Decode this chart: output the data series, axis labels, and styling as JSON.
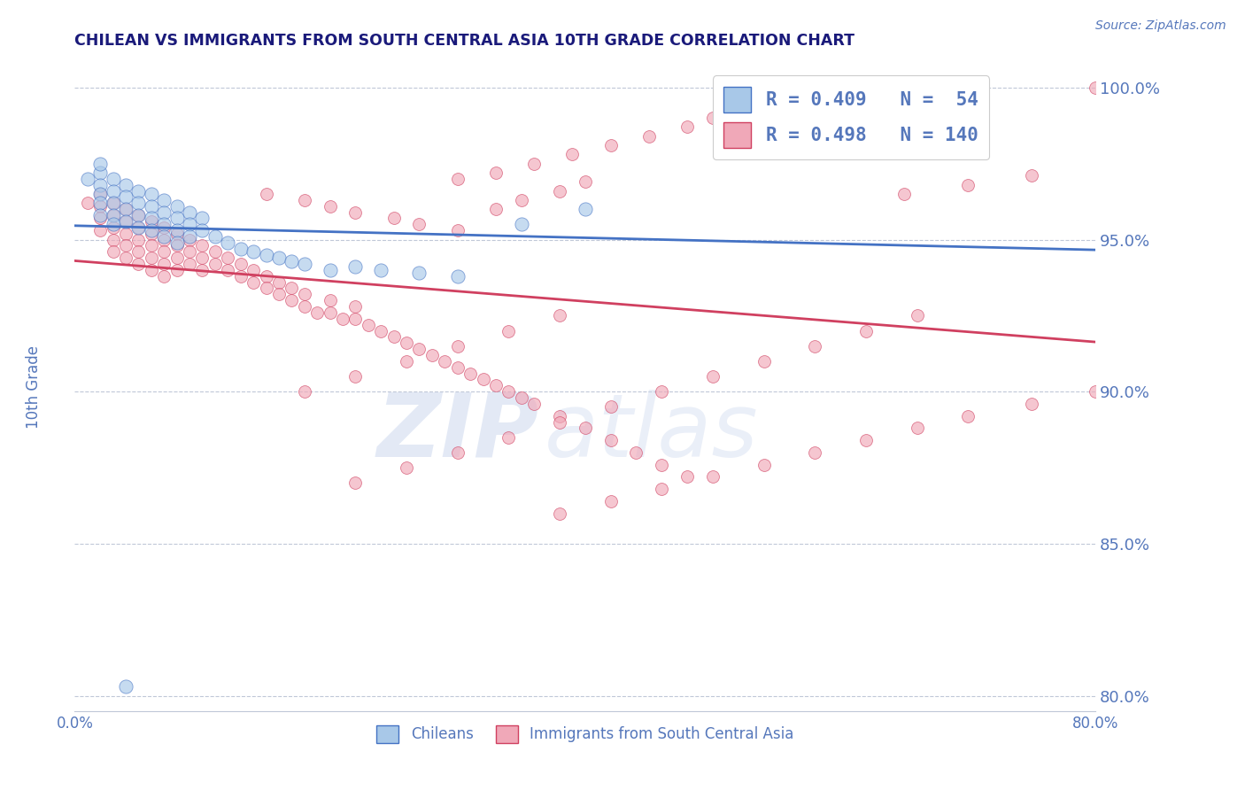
{
  "title": "CHILEAN VS IMMIGRANTS FROM SOUTH CENTRAL ASIA 10TH GRADE CORRELATION CHART",
  "source": "Source: ZipAtlas.com",
  "ylabel": "10th Grade",
  "xlim": [
    0.0,
    0.8
  ],
  "ylim": [
    0.795,
    1.008
  ],
  "xticks": [
    0.0,
    0.2,
    0.4,
    0.6,
    0.8
  ],
  "yticks": [
    0.8,
    0.85,
    0.9,
    0.95,
    1.0
  ],
  "ytick_labels": [
    "80.0%",
    "85.0%",
    "90.0%",
    "95.0%",
    "100.0%"
  ],
  "xtick_labels": [
    "0.0%",
    "",
    "",
    "",
    "80.0%"
  ],
  "color_blue": "#a8c8e8",
  "color_pink": "#f0a8b8",
  "line_blue": "#4472c4",
  "line_pink": "#d04060",
  "R_blue": 0.409,
  "N_blue": 54,
  "R_pink": 0.498,
  "N_pink": 140,
  "label_blue": "Chileans",
  "label_pink": "Immigrants from South Central Asia",
  "watermark_ZIP": "ZIP",
  "watermark_atlas": "atlas",
  "title_color": "#1a1a7a",
  "grid_color": "#c0c8d8",
  "tick_label_color": "#5577bb",
  "dot_size_blue": 120,
  "dot_size_pink": 100,
  "dot_alpha": 0.65,
  "blue_x": [
    0.01,
    0.02,
    0.02,
    0.02,
    0.02,
    0.02,
    0.02,
    0.03,
    0.03,
    0.03,
    0.03,
    0.03,
    0.04,
    0.04,
    0.04,
    0.04,
    0.05,
    0.05,
    0.05,
    0.05,
    0.06,
    0.06,
    0.06,
    0.06,
    0.07,
    0.07,
    0.07,
    0.07,
    0.08,
    0.08,
    0.08,
    0.08,
    0.09,
    0.09,
    0.09,
    0.1,
    0.1,
    0.11,
    0.12,
    0.13,
    0.14,
    0.15,
    0.16,
    0.17,
    0.18,
    0.2,
    0.22,
    0.24,
    0.27,
    0.3,
    0.35,
    0.4,
    0.55,
    0.04
  ],
  "blue_y": [
    0.97,
    0.972,
    0.975,
    0.968,
    0.965,
    0.962,
    0.958,
    0.97,
    0.966,
    0.962,
    0.958,
    0.955,
    0.968,
    0.964,
    0.96,
    0.956,
    0.966,
    0.962,
    0.958,
    0.954,
    0.965,
    0.961,
    0.957,
    0.953,
    0.963,
    0.959,
    0.955,
    0.951,
    0.961,
    0.957,
    0.953,
    0.949,
    0.959,
    0.955,
    0.951,
    0.957,
    0.953,
    0.951,
    0.949,
    0.947,
    0.946,
    0.945,
    0.944,
    0.943,
    0.942,
    0.94,
    0.941,
    0.94,
    0.939,
    0.938,
    0.955,
    0.96,
    0.98,
    0.803
  ],
  "pink_x": [
    0.01,
    0.02,
    0.02,
    0.02,
    0.02,
    0.03,
    0.03,
    0.03,
    0.03,
    0.03,
    0.04,
    0.04,
    0.04,
    0.04,
    0.04,
    0.05,
    0.05,
    0.05,
    0.05,
    0.05,
    0.06,
    0.06,
    0.06,
    0.06,
    0.06,
    0.07,
    0.07,
    0.07,
    0.07,
    0.07,
    0.08,
    0.08,
    0.08,
    0.08,
    0.09,
    0.09,
    0.09,
    0.1,
    0.1,
    0.1,
    0.11,
    0.11,
    0.12,
    0.12,
    0.13,
    0.13,
    0.14,
    0.14,
    0.15,
    0.15,
    0.16,
    0.16,
    0.17,
    0.17,
    0.18,
    0.18,
    0.19,
    0.2,
    0.2,
    0.21,
    0.22,
    0.22,
    0.23,
    0.24,
    0.25,
    0.26,
    0.27,
    0.28,
    0.29,
    0.3,
    0.31,
    0.32,
    0.33,
    0.34,
    0.35,
    0.36,
    0.38,
    0.4,
    0.42,
    0.44,
    0.46,
    0.48,
    0.5,
    0.52,
    0.55,
    0.58,
    0.3,
    0.33,
    0.36,
    0.39,
    0.42,
    0.45,
    0.48,
    0.52,
    0.56,
    0.6,
    0.65,
    0.7,
    0.75,
    0.8,
    0.15,
    0.18,
    0.2,
    0.22,
    0.25,
    0.27,
    0.3,
    0.33,
    0.35,
    0.38,
    0.4,
    0.18,
    0.22,
    0.26,
    0.3,
    0.34,
    0.38,
    0.22,
    0.26,
    0.3,
    0.34,
    0.38,
    0.42,
    0.46,
    0.5,
    0.54,
    0.58,
    0.62,
    0.66,
    0.38,
    0.42,
    0.46,
    0.5,
    0.54,
    0.58,
    0.62,
    0.66,
    0.7,
    0.75,
    0.8
  ],
  "pink_y": [
    0.962,
    0.965,
    0.961,
    0.957,
    0.953,
    0.962,
    0.958,
    0.954,
    0.95,
    0.946,
    0.96,
    0.956,
    0.952,
    0.948,
    0.944,
    0.958,
    0.954,
    0.95,
    0.946,
    0.942,
    0.956,
    0.952,
    0.948,
    0.944,
    0.94,
    0.954,
    0.95,
    0.946,
    0.942,
    0.938,
    0.952,
    0.948,
    0.944,
    0.94,
    0.95,
    0.946,
    0.942,
    0.948,
    0.944,
    0.94,
    0.946,
    0.942,
    0.944,
    0.94,
    0.942,
    0.938,
    0.94,
    0.936,
    0.938,
    0.934,
    0.936,
    0.932,
    0.934,
    0.93,
    0.932,
    0.928,
    0.926,
    0.93,
    0.926,
    0.924,
    0.928,
    0.924,
    0.922,
    0.92,
    0.918,
    0.916,
    0.914,
    0.912,
    0.91,
    0.908,
    0.906,
    0.904,
    0.902,
    0.9,
    0.898,
    0.896,
    0.892,
    0.888,
    0.884,
    0.88,
    0.876,
    0.872,
    0.99,
    0.988,
    0.986,
    0.984,
    0.97,
    0.972,
    0.975,
    0.978,
    0.981,
    0.984,
    0.987,
    0.99,
    0.993,
    0.997,
    0.965,
    0.968,
    0.971,
    1.0,
    0.965,
    0.963,
    0.961,
    0.959,
    0.957,
    0.955,
    0.953,
    0.96,
    0.963,
    0.966,
    0.969,
    0.9,
    0.905,
    0.91,
    0.915,
    0.92,
    0.925,
    0.87,
    0.875,
    0.88,
    0.885,
    0.89,
    0.895,
    0.9,
    0.905,
    0.91,
    0.915,
    0.92,
    0.925,
    0.86,
    0.864,
    0.868,
    0.872,
    0.876,
    0.88,
    0.884,
    0.888,
    0.892,
    0.896,
    0.9
  ]
}
